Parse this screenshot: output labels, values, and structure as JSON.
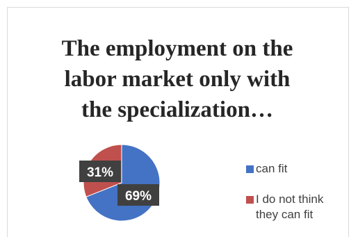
{
  "chart_data": {
    "type": "pie",
    "title": "The employment on the\nlabor market only with\nthe specialization…",
    "categories": [
      "can fit",
      "I do not think they can fit"
    ],
    "values": [
      69,
      31
    ],
    "data_labels": [
      "69%",
      "31%"
    ],
    "colors": [
      "#4472c4",
      "#c0504d"
    ],
    "legend_position": "right"
  },
  "legend": [
    {
      "label": "can fit",
      "color": "#4472c4"
    },
    {
      "label": "I do not think\nthey can fit",
      "color": "#c0504d"
    }
  ]
}
